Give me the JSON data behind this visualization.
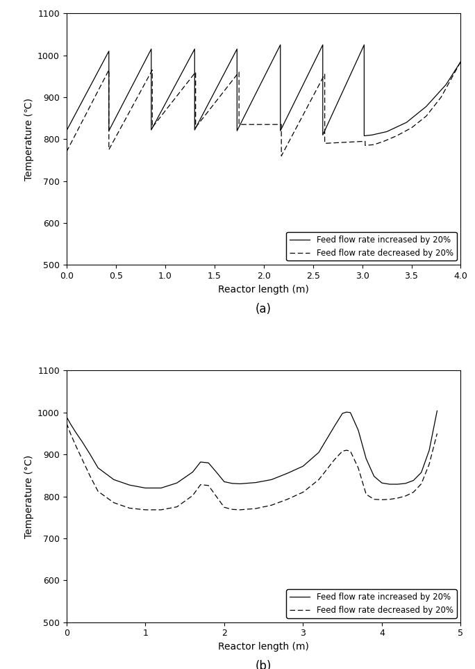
{
  "fig_width": 6.84,
  "fig_height": 9.63,
  "background_color": "#ffffff",
  "subplot_a": {
    "xlabel": "Reactor length (m)",
    "ylabel": "Temperature (℃)",
    "xlim": [
      0.0,
      4.0
    ],
    "ylim": [
      500,
      1100
    ],
    "yticks": [
      500,
      600,
      700,
      800,
      900,
      1000,
      1100
    ],
    "xticks": [
      0.0,
      0.5,
      1.0,
      1.5,
      2.0,
      2.5,
      3.0,
      3.5,
      4.0
    ],
    "legend_labels": [
      "Feed flow rate increased by 20%",
      "Feed flow rate decreased by 20%"
    ],
    "label": "(a)"
  },
  "subplot_b": {
    "xlabel": "Reactor length (m)",
    "ylabel": "Temperature (°C)",
    "xlim": [
      0,
      5
    ],
    "ylim": [
      500,
      1100
    ],
    "yticks": [
      500,
      600,
      700,
      800,
      900,
      1000,
      1100
    ],
    "xticks": [
      0,
      1,
      2,
      3,
      4,
      5
    ],
    "legend_labels": [
      "Feed flow rate increased by 20%",
      "Feed flow rate decreased by 20%"
    ],
    "label": "(b)"
  }
}
